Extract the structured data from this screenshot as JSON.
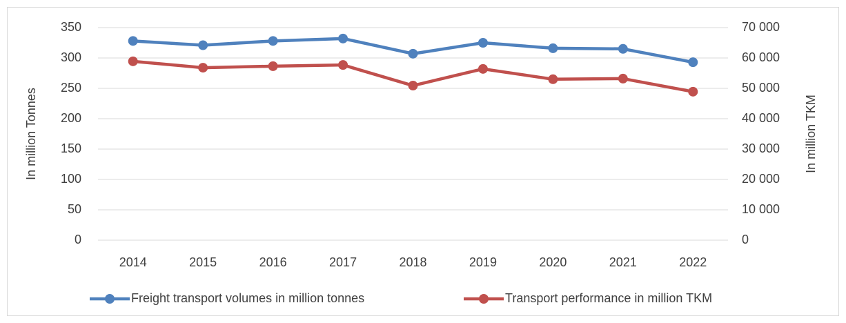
{
  "chart_data": {
    "type": "line",
    "y_label": "In million Tonnes",
    "y2_label": "In million TKM",
    "categories": [
      "2014",
      "2015",
      "2016",
      "2017",
      "2018",
      "2019",
      "2020",
      "2021",
      "2022"
    ],
    "series": [
      {
        "name": "Freight transport volumes in million tonnes",
        "color": "#4f81bd",
        "values": [
          328,
          321,
          328,
          332,
          307,
          325,
          316,
          315,
          293
        ]
      },
      {
        "name": "Transport performance in million TKM",
        "color": "#c0504d",
        "axis": "y2",
        "values": [
          58900,
          56800,
          57300,
          57700,
          50900,
          56400,
          53000,
          53200,
          48900
        ]
      }
    ],
    "ylim": [
      0,
      350
    ],
    "yticks": [
      0,
      50,
      100,
      150,
      200,
      250,
      300,
      350
    ],
    "y2lim": [
      0,
      70000
    ],
    "y2ticks": [
      0,
      {
        "value": 10000,
        "label": "10 000"
      },
      {
        "value": 20000,
        "label": "20 000"
      },
      {
        "value": 30000,
        "label": "30 000"
      },
      {
        "value": 40000,
        "label": "40 000"
      },
      {
        "value": 50000,
        "label": "50 000"
      },
      {
        "value": 60000,
        "label": "60 000"
      },
      {
        "value": 70000,
        "label": "70 000"
      }
    ],
    "grid": true,
    "legend": "bottom"
  }
}
